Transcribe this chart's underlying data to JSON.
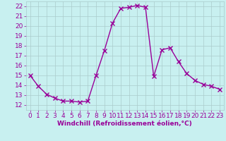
{
  "x": [
    0,
    1,
    2,
    3,
    4,
    5,
    6,
    7,
    8,
    9,
    10,
    11,
    12,
    13,
    14,
    15,
    16,
    17,
    18,
    19,
    20,
    21,
    22,
    23
  ],
  "y": [
    15,
    13.9,
    13.1,
    12.7,
    12.4,
    12.4,
    12.3,
    12.4,
    15.0,
    17.5,
    20.3,
    21.8,
    21.9,
    22.1,
    21.9,
    14.9,
    17.6,
    17.8,
    16.4,
    15.2,
    14.5,
    14.1,
    13.9,
    13.6
  ],
  "line_color": "#990099",
  "marker": "x",
  "marker_size": 4,
  "marker_lw": 1.0,
  "bg_color": "#c8f0f0",
  "grid_color": "#aacccc",
  "xlabel": "Windchill (Refroidissement éolien,°C)",
  "xlabel_color": "#990099",
  "tick_color": "#990099",
  "label_color": "#990099",
  "ylim": [
    11.5,
    22.5
  ],
  "xlim": [
    -0.5,
    23.5
  ],
  "yticks": [
    12,
    13,
    14,
    15,
    16,
    17,
    18,
    19,
    20,
    21,
    22
  ],
  "xticks": [
    0,
    1,
    2,
    3,
    4,
    5,
    6,
    7,
    8,
    9,
    10,
    11,
    12,
    13,
    14,
    15,
    16,
    17,
    18,
    19,
    20,
    21,
    22,
    23
  ],
  "tick_fontsize": 6.5,
  "xlabel_fontsize": 6.5
}
